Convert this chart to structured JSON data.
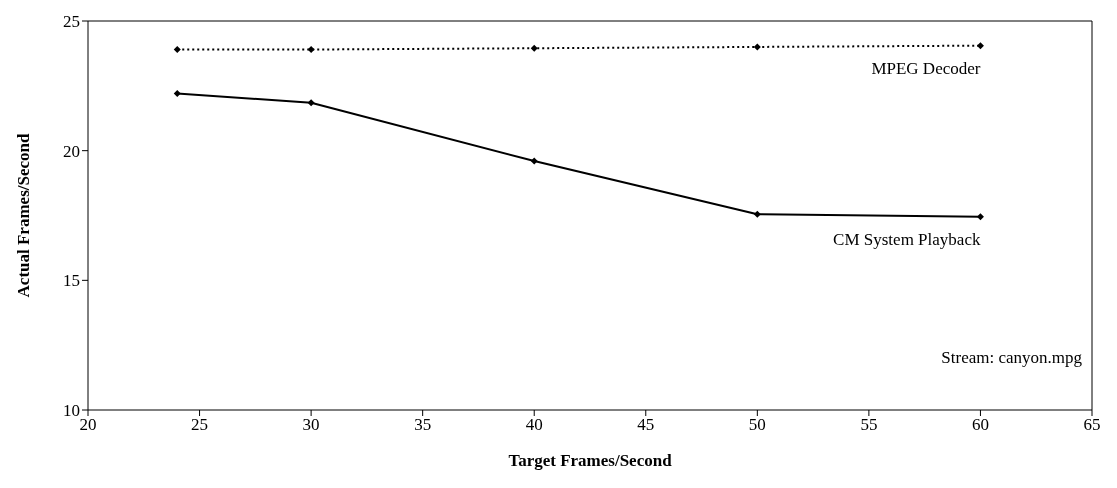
{
  "chart_data": {
    "type": "line",
    "xlabel": "Target Frames/Second",
    "ylabel": "Actual Frames/Second",
    "x": [
      24,
      30,
      40,
      50,
      60
    ],
    "series": [
      {
        "name": "MPEG Decoder",
        "color": "#000000",
        "line_style": "dotted",
        "values": [
          23.9,
          23.9,
          23.95,
          24,
          24.05
        ]
      },
      {
        "name": "CM System Playback",
        "color": "#000000",
        "line_style": "solid",
        "values": [
          22.2,
          21.85,
          19.6,
          17.55,
          17.45
        ]
      }
    ],
    "xlim": [
      20,
      65
    ],
    "xticks": [
      20,
      25,
      30,
      35,
      40,
      45,
      50,
      55,
      60,
      65
    ],
    "ylim": [
      10,
      25
    ],
    "yticks": [
      10,
      15,
      20,
      25
    ],
    "marker": "diamond",
    "annotations": [
      "Stream: canyon.mpg"
    ]
  }
}
